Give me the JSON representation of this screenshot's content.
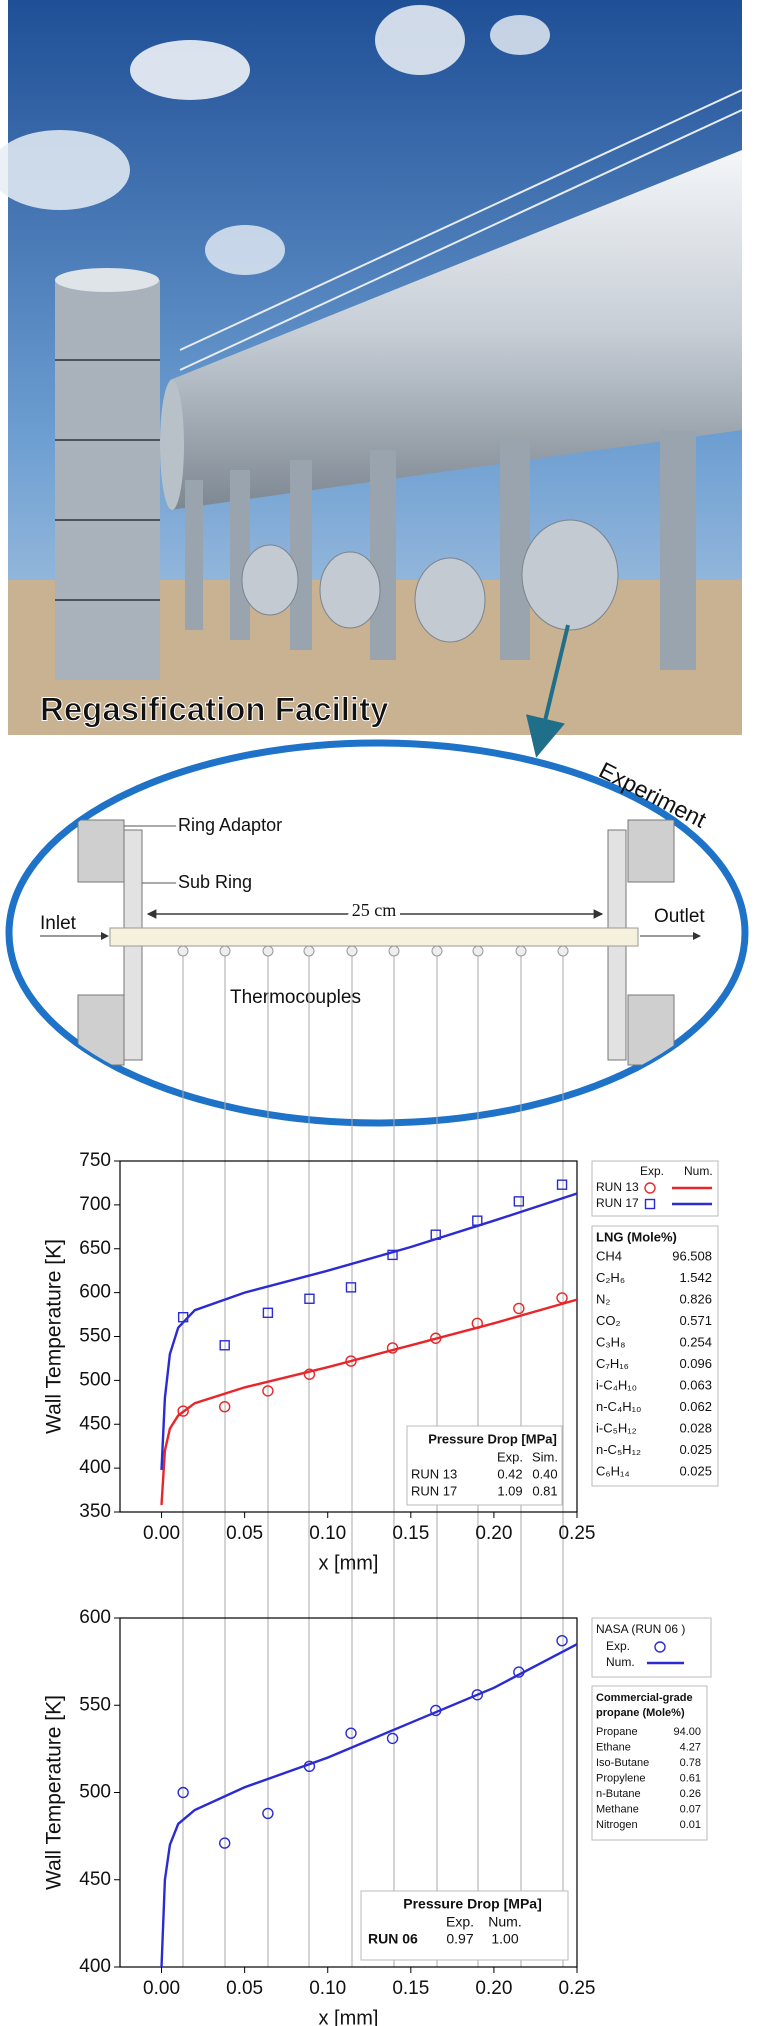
{
  "photo": {
    "caption": "Regasification Facility"
  },
  "diagram": {
    "label": "Experiment",
    "ring_adaptor": "Ring Adaptor",
    "sub_ring": "Sub Ring",
    "length": "25 cm",
    "inlet": "Inlet",
    "outlet": "Outlet",
    "thermocouples": "Thermocouples"
  },
  "chart_data": [
    {
      "type": "line",
      "xlabel": "x [mm]",
      "ylabel": "Wall Temperature [K]",
      "xlim": [
        -0.025,
        0.25
      ],
      "xticks": [
        {
          "value": 0,
          "label": "0.00"
        },
        {
          "value": 0.05,
          "label": "0.05"
        },
        {
          "value": 0.1,
          "label": "0.10"
        },
        {
          "value": 0.15,
          "label": "0.15"
        },
        {
          "value": 0.2,
          "label": "0.20"
        },
        {
          "value": 0.25,
          "label": "0.25"
        }
      ],
      "ylim": [
        350,
        750
      ],
      "yticks": [
        350,
        400,
        450,
        500,
        550,
        600,
        650,
        700,
        750
      ],
      "legend_layout": "columns",
      "legend_labels": [
        "Exp.",
        "Num."
      ],
      "series": [
        {
          "name": "RUN 13",
          "color": "#e8262a",
          "marker": "circle",
          "exp": {
            "x": [
              0.013,
              0.038,
              0.064,
              0.089,
              0.114,
              0.139,
              0.165,
              0.19,
              0.215,
              0.241
            ],
            "values": [
              465,
              470,
              488,
              507,
              522,
              537,
              548,
              565,
              582,
              594
            ]
          },
          "num": {
            "x": [
              0,
              0.002,
              0.005,
              0.01,
              0.02,
              0.05,
              0.1,
              0.15,
              0.2,
              0.25
            ],
            "values": [
              358,
              420,
              445,
              460,
              474,
              492,
              515,
              540,
              565,
              592
            ]
          }
        },
        {
          "name": "RUN 17",
          "color": "#2b2bd4",
          "marker": "square",
          "exp": {
            "x": [
              0.013,
              0.038,
              0.064,
              0.089,
              0.114,
              0.139,
              0.165,
              0.19,
              0.215,
              0.241
            ],
            "values": [
              572,
              540,
              577,
              593,
              606,
              643,
              666,
              682,
              704,
              723
            ]
          },
          "num": {
            "x": [
              0,
              0.002,
              0.005,
              0.01,
              0.02,
              0.05,
              0.1,
              0.15,
              0.2,
              0.25
            ],
            "values": [
              398,
              480,
              530,
              560,
              580,
              600,
              625,
              652,
              682,
              713
            ]
          }
        }
      ],
      "table": {
        "title": "Pressure Drop [MPa]",
        "columns": [
          "Exp.",
          "Sim."
        ],
        "rows": [
          {
            "label": "RUN 13",
            "cells": [
              "0.42",
              "0.40"
            ]
          },
          {
            "label": "RUN 17",
            "cells": [
              "1.09",
              "0.81"
            ]
          }
        ]
      },
      "composition": {
        "title": [
          "LNG (Mole%)"
        ],
        "rows": [
          {
            "name": "CH4",
            "value": "96.508"
          },
          {
            "name": "C₂H₆",
            "value": "1.542"
          },
          {
            "name": "N₂",
            "value": "0.826"
          },
          {
            "name": "CO₂",
            "value": "0.571"
          },
          {
            "name": "C₃H₈",
            "value": "0.254"
          },
          {
            "name": "C₇H₁₆",
            "value": "0.096"
          },
          {
            "name": "i-C₄H₁₀",
            "value": "0.063"
          },
          {
            "name": "n-C₄H₁₀",
            "value": "0.062"
          },
          {
            "name": "i-C₅H₁₂",
            "value": "0.028"
          },
          {
            "name": "n-C₅H₁₂",
            "value": "0.025"
          },
          {
            "name": "C₆H₁₄",
            "value": "0.025"
          }
        ]
      }
    },
    {
      "type": "line",
      "xlabel": "x [mm]",
      "ylabel": "Wall Temperature [K]",
      "xlim": [
        -0.025,
        0.25
      ],
      "xticks": [
        {
          "value": 0,
          "label": "0.00"
        },
        {
          "value": 0.05,
          "label": "0.05"
        },
        {
          "value": 0.1,
          "label": "0.10"
        },
        {
          "value": 0.15,
          "label": "0.15"
        },
        {
          "value": 0.2,
          "label": "0.20"
        },
        {
          "value": 0.25,
          "label": "0.25"
        }
      ],
      "ylim": [
        400,
        600
      ],
      "yticks": [
        400,
        450,
        500,
        550,
        600
      ],
      "legend_layout": "rows",
      "legend_labels": [
        "Exp.",
        "Num."
      ],
      "series": [
        {
          "name": "NASA (RUN 06 )",
          "color": "#2b2bd4",
          "marker": "circle",
          "exp": {
            "x": [
              0.013,
              0.038,
              0.064,
              0.089,
              0.114,
              0.139,
              0.165,
              0.19,
              0.215,
              0.241
            ],
            "values": [
              500,
              471,
              488,
              515,
              534,
              531,
              547,
              556,
              569,
              587
            ]
          },
          "num": {
            "x": [
              0,
              0.002,
              0.005,
              0.01,
              0.02,
              0.05,
              0.1,
              0.15,
              0.2,
              0.25
            ],
            "values": [
              400,
              450,
              470,
              482,
              490,
              503,
              520,
              540,
              560,
              585
            ]
          }
        }
      ],
      "table": {
        "title": "Pressure Drop [MPa]",
        "columns": [
          "Exp.",
          "Num."
        ],
        "rows": [
          {
            "label": "RUN 06",
            "cells": [
              "0.97",
              "1.00"
            ]
          }
        ]
      },
      "composition": {
        "title": [
          "Commercial-grade",
          "propane (Mole%)"
        ],
        "rows": [
          {
            "name": "Propane",
            "value": "94.00"
          },
          {
            "name": "Ethane",
            "value": "4.27"
          },
          {
            "name": "Iso-Butane",
            "value": "0.78"
          },
          {
            "name": "Propylene",
            "value": "0.61"
          },
          {
            "name": "n-Butane",
            "value": "0.26"
          },
          {
            "name": "Methane",
            "value": "0.07"
          },
          {
            "name": "Nitrogen",
            "value": "0.01"
          }
        ]
      }
    }
  ]
}
